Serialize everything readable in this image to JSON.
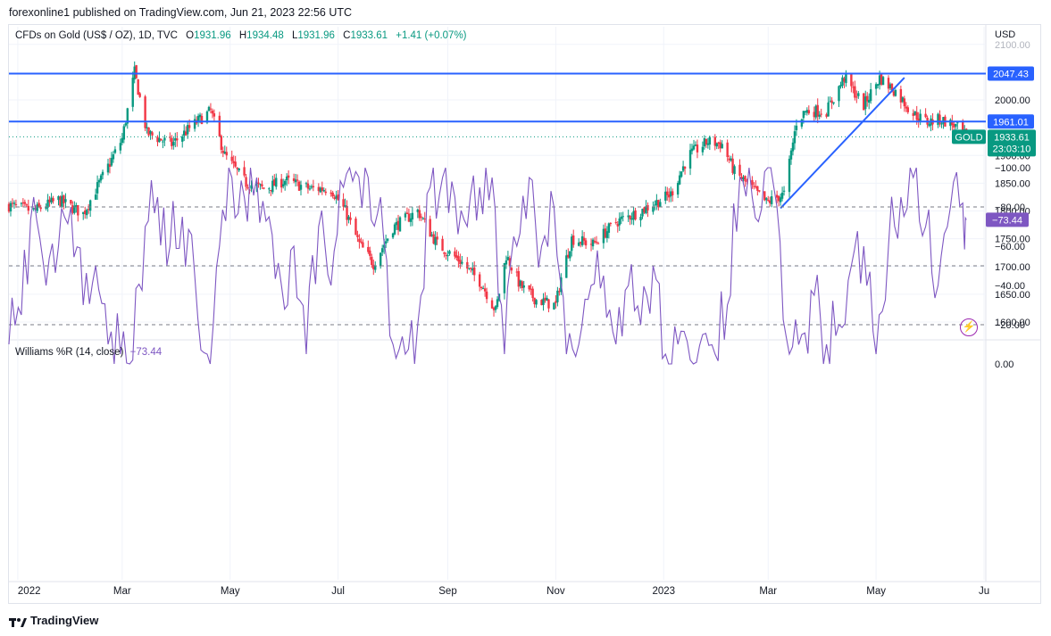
{
  "publisher": "forexonline1 published on TradingView.com, Jun 21, 2023 22:56 UTC",
  "legend": {
    "symbol": "CFDs on Gold (US$ / OZ), 1D, TVC",
    "o_label": "O",
    "o": "1931.96",
    "h_label": "H",
    "h": "1934.48",
    "l_label": "L",
    "l": "1931.96",
    "c_label": "C",
    "c": "1933.61",
    "change": "+1.41 (+0.07%)"
  },
  "currency": "USD",
  "indicator_legend": {
    "name": "Williams %R (14, close)",
    "value": "−73.44"
  },
  "price_tags": {
    "level_upper": "2047.43",
    "level_lower": "1961.01",
    "gold_label": "GOLD",
    "last_price": "1933.61",
    "countdown": "23:03:10",
    "wr_value": "−73.44"
  },
  "footer": {
    "brand": "TradingView"
  },
  "colors": {
    "up": "#089981",
    "down": "#f23645",
    "level_line": "#2962ff",
    "wr_line": "#7e57c2",
    "wr_band": "#ede7f6"
  },
  "chart_data": [
    {
      "type": "candlestick",
      "title": "CFDs on Gold (US$ / OZ), 1D, TVC",
      "y_unit": "USD",
      "ylim": [
        1570,
        2110
      ],
      "y_ticks": [
        1600,
        1650,
        1700,
        1750,
        1800,
        1850,
        1900,
        2000,
        2100
      ],
      "y_tick_labels": [
        "1600.00",
        "1650.00",
        "1700.00",
        "1750.00",
        "1800.00",
        "1850.00",
        "1900.00",
        "2000.00",
        "2100.00"
      ],
      "x_tick_labels": [
        "2022",
        "Mar",
        "May",
        "Jul",
        "Sep",
        "Nov",
        "2023",
        "Mar",
        "May",
        "Ju"
      ],
      "x_ticks": [
        "2022-01-01",
        "2022-03-01",
        "2022-05-01",
        "2022-07-01",
        "2022-09-01",
        "2022-11-01",
        "2023-01-01",
        "2023-03-01",
        "2023-05-01",
        "2023-07-01"
      ],
      "x_range": [
        "2021-12-27",
        "2023-07-02"
      ],
      "horizontal_levels": [
        2047.43,
        1961.01
      ],
      "last_close": 1933.61,
      "trendline": [
        {
          "x": "2023-03-08",
          "y": 1805
        },
        {
          "x": "2023-05-17",
          "y": 2040
        }
      ],
      "close_series": [
        {
          "x": "2021-12-27",
          "y": 1810
        },
        {
          "x": "2022-01-10",
          "y": 1800
        },
        {
          "x": "2022-01-24",
          "y": 1820
        },
        {
          "x": "2022-02-07",
          "y": 1795
        },
        {
          "x": "2022-02-21",
          "y": 1880
        },
        {
          "x": "2022-03-01",
          "y": 1930
        },
        {
          "x": "2022-03-08",
          "y": 2050
        },
        {
          "x": "2022-03-15",
          "y": 1940
        },
        {
          "x": "2022-03-29",
          "y": 1920
        },
        {
          "x": "2022-04-12",
          "y": 1960
        },
        {
          "x": "2022-04-20",
          "y": 1980
        },
        {
          "x": "2022-04-28",
          "y": 1900
        },
        {
          "x": "2022-05-10",
          "y": 1850
        },
        {
          "x": "2022-05-20",
          "y": 1840
        },
        {
          "x": "2022-06-01",
          "y": 1855
        },
        {
          "x": "2022-06-15",
          "y": 1840
        },
        {
          "x": "2022-06-27",
          "y": 1840
        },
        {
          "x": "2022-07-05",
          "y": 1800
        },
        {
          "x": "2022-07-13",
          "y": 1740
        },
        {
          "x": "2022-07-21",
          "y": 1705
        },
        {
          "x": "2022-08-01",
          "y": 1770
        },
        {
          "x": "2022-08-15",
          "y": 1800
        },
        {
          "x": "2022-08-26",
          "y": 1740
        },
        {
          "x": "2022-09-08",
          "y": 1710
        },
        {
          "x": "2022-09-20",
          "y": 1670
        },
        {
          "x": "2022-09-28",
          "y": 1620
        },
        {
          "x": "2022-10-04",
          "y": 1720
        },
        {
          "x": "2022-10-12",
          "y": 1665
        },
        {
          "x": "2022-10-21",
          "y": 1640
        },
        {
          "x": "2022-11-01",
          "y": 1630
        },
        {
          "x": "2022-11-04",
          "y": 1680
        },
        {
          "x": "2022-11-10",
          "y": 1750
        },
        {
          "x": "2022-11-22",
          "y": 1740
        },
        {
          "x": "2022-12-05",
          "y": 1780
        },
        {
          "x": "2022-12-19",
          "y": 1800
        },
        {
          "x": "2023-01-05",
          "y": 1830
        },
        {
          "x": "2023-01-15",
          "y": 1900
        },
        {
          "x": "2023-01-26",
          "y": 1925
        },
        {
          "x": "2023-02-03",
          "y": 1920
        },
        {
          "x": "2023-02-10",
          "y": 1870
        },
        {
          "x": "2023-02-20",
          "y": 1840
        },
        {
          "x": "2023-02-28",
          "y": 1815
        },
        {
          "x": "2023-03-10",
          "y": 1830
        },
        {
          "x": "2023-03-17",
          "y": 1960
        },
        {
          "x": "2023-03-22",
          "y": 1980
        },
        {
          "x": "2023-04-03",
          "y": 1980
        },
        {
          "x": "2023-04-13",
          "y": 2040
        },
        {
          "x": "2023-04-24",
          "y": 1990
        },
        {
          "x": "2023-05-03",
          "y": 2040
        },
        {
          "x": "2023-05-12",
          "y": 2015
        },
        {
          "x": "2023-05-22",
          "y": 1975
        },
        {
          "x": "2023-05-30",
          "y": 1960
        },
        {
          "x": "2023-06-06",
          "y": 1965
        },
        {
          "x": "2023-06-14",
          "y": 1955
        },
        {
          "x": "2023-06-21",
          "y": 1933.61
        }
      ]
    },
    {
      "type": "line",
      "title": "Williams %R (14, close)",
      "ylim": [
        -105,
        2
      ],
      "y_ticks": [
        0,
        -20,
        -40,
        -60,
        -80,
        -100
      ],
      "y_tick_labels": [
        "0.00",
        "−20.00",
        "−40.00",
        "−60.00",
        "−80.00",
        "−100.00"
      ],
      "band": [
        -80,
        -20
      ],
      "midline": -50,
      "last_value": -73.44,
      "series": [
        {
          "values": [
            {
              "x": "2021-12-27",
              "y": -10
            },
            {
              "x": "2022-01-03",
              "y": -25
            },
            {
              "x": "2022-01-10",
              "y": -85
            },
            {
              "x": "2022-01-17",
              "y": -40
            },
            {
              "x": "2022-01-24",
              "y": -60
            },
            {
              "x": "2022-01-31",
              "y": -80
            },
            {
              "x": "2022-02-07",
              "y": -30
            },
            {
              "x": "2022-02-14",
              "y": -50
            },
            {
              "x": "2022-02-21",
              "y": -10
            },
            {
              "x": "2022-02-28",
              "y": -5
            },
            {
              "x": "2022-03-07",
              "y": -2
            },
            {
              "x": "2022-03-14",
              "y": -70
            },
            {
              "x": "2022-03-21",
              "y": -85
            },
            {
              "x": "2022-03-28",
              "y": -60
            },
            {
              "x": "2022-04-04",
              "y": -75
            },
            {
              "x": "2022-04-11",
              "y": -45
            },
            {
              "x": "2022-04-18",
              "y": -5
            },
            {
              "x": "2022-04-25",
              "y": -60
            },
            {
              "x": "2022-05-02",
              "y": -95
            },
            {
              "x": "2022-05-09",
              "y": -85
            },
            {
              "x": "2022-05-16",
              "y": -95
            },
            {
              "x": "2022-05-23",
              "y": -75
            },
            {
              "x": "2022-05-30",
              "y": -40
            },
            {
              "x": "2022-06-06",
              "y": -60
            },
            {
              "x": "2022-06-13",
              "y": -5
            },
            {
              "x": "2022-06-20",
              "y": -70
            },
            {
              "x": "2022-06-27",
              "y": -40
            },
            {
              "x": "2022-07-04",
              "y": -90
            },
            {
              "x": "2022-07-11",
              "y": -98
            },
            {
              "x": "2022-07-18",
              "y": -95
            },
            {
              "x": "2022-07-25",
              "y": -85
            },
            {
              "x": "2022-08-01",
              "y": -10
            },
            {
              "x": "2022-08-08",
              "y": -5
            },
            {
              "x": "2022-08-15",
              "y": -20
            },
            {
              "x": "2022-08-22",
              "y": -90
            },
            {
              "x": "2022-08-29",
              "y": -95
            },
            {
              "x": "2022-09-05",
              "y": -85
            },
            {
              "x": "2022-09-12",
              "y": -70
            },
            {
              "x": "2022-09-19",
              "y": -90
            },
            {
              "x": "2022-09-26",
              "y": -95
            },
            {
              "x": "2022-10-03",
              "y": -5
            },
            {
              "x": "2022-10-10",
              "y": -60
            },
            {
              "x": "2022-10-17",
              "y": -95
            },
            {
              "x": "2022-10-24",
              "y": -60
            },
            {
              "x": "2022-10-31",
              "y": -80
            },
            {
              "x": "2022-11-07",
              "y": -5
            },
            {
              "x": "2022-11-14",
              "y": -10
            },
            {
              "x": "2022-11-21",
              "y": -40
            },
            {
              "x": "2022-11-28",
              "y": -45
            },
            {
              "x": "2022-12-05",
              "y": -10
            },
            {
              "x": "2022-12-12",
              "y": -40
            },
            {
              "x": "2022-12-19",
              "y": -20
            },
            {
              "x": "2022-12-26",
              "y": -50
            },
            {
              "x": "2023-01-02",
              "y": -5
            },
            {
              "x": "2023-01-09",
              "y": -10
            },
            {
              "x": "2023-01-16",
              "y": -2
            },
            {
              "x": "2023-01-23",
              "y": -15
            },
            {
              "x": "2023-01-30",
              "y": -5
            },
            {
              "x": "2023-02-06",
              "y": -30
            },
            {
              "x": "2023-02-13",
              "y": -95
            },
            {
              "x": "2023-02-20",
              "y": -85
            },
            {
              "x": "2023-02-27",
              "y": -98
            },
            {
              "x": "2023-03-06",
              "y": -80
            },
            {
              "x": "2023-03-13",
              "y": -5
            },
            {
              "x": "2023-03-20",
              "y": -15
            },
            {
              "x": "2023-03-27",
              "y": -35
            },
            {
              "x": "2023-04-03",
              "y": -10
            },
            {
              "x": "2023-04-10",
              "y": -20
            },
            {
              "x": "2023-04-17",
              "y": -50
            },
            {
              "x": "2023-04-24",
              "y": -60
            },
            {
              "x": "2023-05-01",
              "y": -5
            },
            {
              "x": "2023-05-08",
              "y": -60
            },
            {
              "x": "2023-05-15",
              "y": -85
            },
            {
              "x": "2023-05-22",
              "y": -95
            },
            {
              "x": "2023-05-29",
              "y": -70
            },
            {
              "x": "2023-06-05",
              "y": -40
            },
            {
              "x": "2023-06-12",
              "y": -80
            },
            {
              "x": "2023-06-19",
              "y": -82
            },
            {
              "x": "2023-06-21",
              "y": -73.44
            }
          ]
        }
      ]
    }
  ]
}
